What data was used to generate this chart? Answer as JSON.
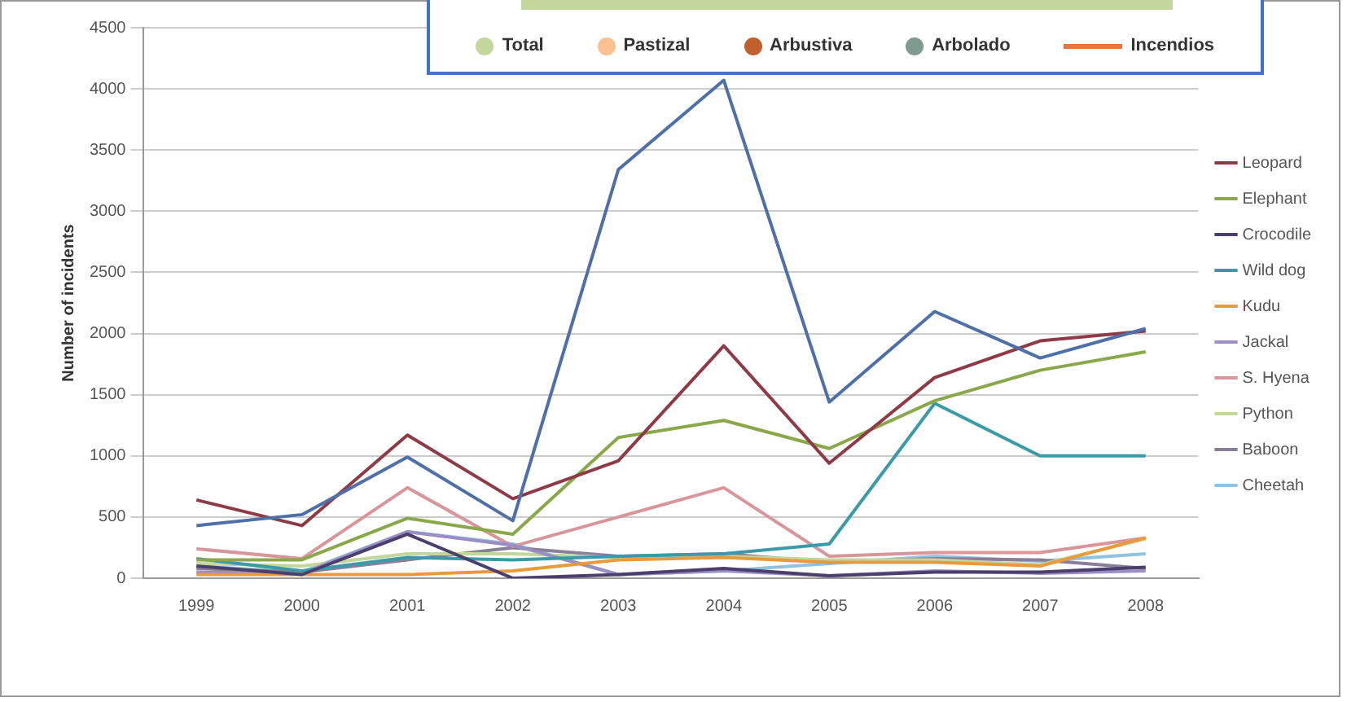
{
  "chart_data": {
    "type": "line",
    "ylabel": "Number of incidents",
    "categories": [
      "1999",
      "2000",
      "2001",
      "2002",
      "2003",
      "2004",
      "2005",
      "2006",
      "2007",
      "2008"
    ],
    "ylim": [
      0,
      4500
    ],
    "yticks": [
      0,
      500,
      1000,
      1500,
      2000,
      2500,
      3000,
      3500,
      4000,
      4500
    ],
    "grid": "y",
    "legend": "right",
    "marker": "none",
    "line_style": "solid",
    "series": [
      {
        "color": "#4f6fa8",
        "values": [
          430,
          520,
          990,
          470,
          3340,
          4070,
          1440,
          2180,
          1800,
          2040
        ]
      },
      {
        "name": "Leopard",
        "color": "#8e3a47",
        "values": [
          640,
          430,
          1170,
          650,
          960,
          1900,
          940,
          1640,
          1940,
          2020
        ]
      },
      {
        "name": "Elephant",
        "color": "#8aa84a",
        "values": [
          150,
          150,
          490,
          360,
          1150,
          1290,
          1060,
          1450,
          1700,
          1850
        ]
      },
      {
        "name": "Crocodile",
        "color": "#4b3f6e",
        "values": [
          100,
          30,
          360,
          0,
          30,
          80,
          20,
          50,
          50,
          90
        ]
      },
      {
        "name": "Wild dog",
        "color": "#3a9aa8",
        "values": [
          160,
          60,
          170,
          150,
          180,
          200,
          280,
          1430,
          1000,
          1000
        ]
      },
      {
        "name": "Kudu",
        "color": "#e89a3c",
        "values": [
          30,
          30,
          30,
          60,
          150,
          170,
          130,
          130,
          100,
          330
        ]
      },
      {
        "name": "Jackal",
        "color": "#9b8ec4",
        "values": [
          50,
          40,
          380,
          270,
          30,
          60,
          20,
          60,
          40,
          60
        ]
      },
      {
        "name": "S. Hyena",
        "color": "#d9969a",
        "values": [
          240,
          160,
          740,
          260,
          500,
          740,
          180,
          210,
          210,
          330
        ]
      },
      {
        "name": "Python",
        "color": "#c3d69b",
        "values": [
          120,
          100,
          200,
          200,
          170,
          180,
          150,
          150,
          110,
          320
        ]
      },
      {
        "name": "Baboon",
        "color": "#8a7f99",
        "values": [
          80,
          50,
          150,
          250,
          180,
          200,
          130,
          160,
          150,
          80
        ]
      },
      {
        "name": "Cheetah",
        "color": "#8fc3e0",
        "values": [
          100,
          50,
          380,
          280,
          30,
          60,
          120,
          180,
          140,
          200
        ]
      }
    ],
    "annotations": [
      "Total",
      "Pastizal",
      "Arbustiva",
      "Arbolado",
      "Incendios"
    ]
  }
}
